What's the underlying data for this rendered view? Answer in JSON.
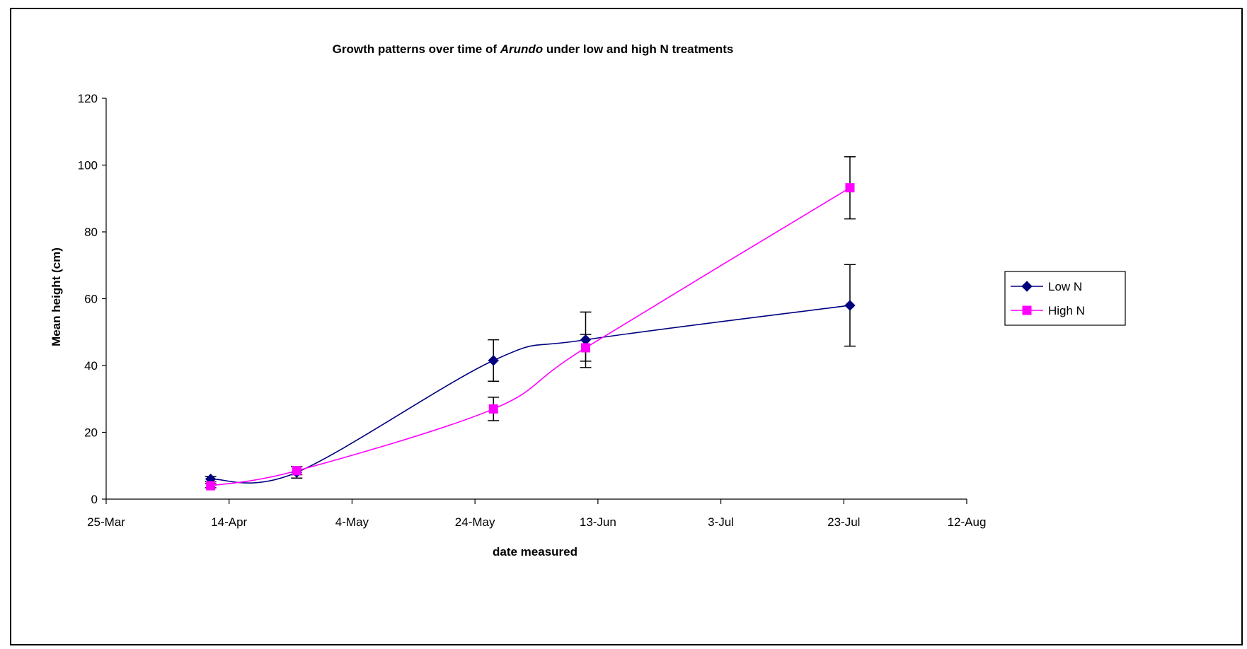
{
  "chart_data": {
    "type": "line",
    "title_parts": [
      {
        "text": "Growth patterns over time of ",
        "italic": false
      },
      {
        "text": "Arundo",
        "italic": true
      },
      {
        "text": "  under low and high N treatments",
        "italic": false
      }
    ],
    "xlabel": "date measured",
    "ylabel": "Mean height (cm)",
    "ylim": [
      0,
      120
    ],
    "y_ticks": [
      0,
      20,
      40,
      60,
      80,
      100,
      120
    ],
    "x_tick_labels": [
      "25-Mar",
      "14-Apr",
      "4-May",
      "24-May",
      "13-Jun",
      "3-Jul",
      "23-Jul",
      "12-Aug"
    ],
    "x_range_days": [
      0,
      140
    ],
    "x_tick_days": [
      0,
      20,
      40,
      60,
      80,
      100,
      120,
      140
    ],
    "legend_position": "right",
    "grid": false,
    "series": [
      {
        "name": "Low N",
        "color": "#000080",
        "marker": "diamond",
        "x": [
          17,
          31,
          63,
          78,
          121
        ],
        "y": [
          6.0,
          8.0,
          41.5,
          47.7,
          58.0
        ],
        "err": [
          0.8,
          1.7,
          6.2,
          8.3,
          12.2
        ]
      },
      {
        "name": "High N",
        "color": "#ff00ff",
        "marker": "square",
        "x": [
          17,
          31,
          63,
          78,
          121
        ],
        "y": [
          4.0,
          8.5,
          27.0,
          45.3,
          93.2
        ],
        "err": [
          0.6,
          1.2,
          3.5,
          4.0,
          9.3
        ]
      }
    ]
  }
}
